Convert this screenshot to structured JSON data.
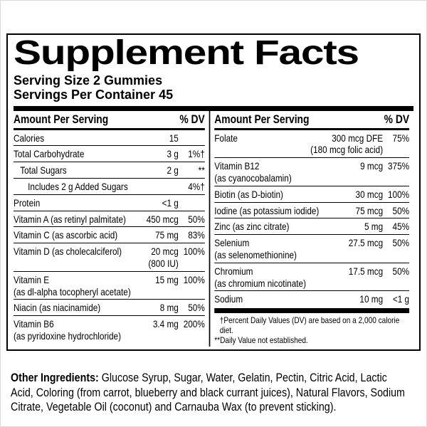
{
  "label": {
    "title": "Supplement Facts",
    "serving_size": "Serving Size 2 Gummies",
    "servings_per_container": "Servings Per Container 45",
    "left": {
      "header_amount": "Amount Per Serving",
      "header_dv": "% DV",
      "rows": [
        {
          "name": "Calories",
          "amount": "15",
          "dv": ""
        },
        {
          "name": "Total Carbohydrate",
          "amount": "3 g",
          "dv": "1%†"
        },
        {
          "name": "Total Sugars",
          "amount": "2 g",
          "dv": "**"
        },
        {
          "name": "Includes 2 g Added Sugars",
          "amount": "",
          "dv": "4%†"
        },
        {
          "name": "Protein",
          "amount": "<1 g",
          "dv": ""
        },
        {
          "name": "Vitamin A (as retinyl palmitate)",
          "amount": "450 mcg",
          "dv": "50%"
        },
        {
          "name": "Vitamin C (as ascorbic acid)",
          "amount": "75 mg",
          "dv": "83%"
        },
        {
          "name": "Vitamin D (as cholecalciferol)",
          "amount": "20 mcg",
          "amount_sub": "(800 IU)",
          "dv": "100%"
        },
        {
          "name": "Vitamin E",
          "name_sub": "(as dl-alpha tocopheryl acetate)",
          "amount": "15 mg",
          "dv": "100%"
        },
        {
          "name": "Niacin (as niacinamide)",
          "amount": "8 mg",
          "dv": "50%"
        },
        {
          "name": "Vitamin B6",
          "name_sub": "(as pyridoxine hydrochloride)",
          "amount": "3.4 mg",
          "dv": "200%"
        }
      ]
    },
    "right": {
      "header_amount": "Amount Per Serving",
      "header_dv": "% DV",
      "rows": [
        {
          "name": "Folate",
          "amount": "300 mcg DFE",
          "amount_sub": "(180 mcg folic acid)",
          "dv": "75%"
        },
        {
          "name": "Vitamin B12",
          "name_sub": "(as cyanocobalamin)",
          "amount": "9 mcg",
          "dv": "375%"
        },
        {
          "name": "Biotin (as D-biotin)",
          "amount": "30 mcg",
          "dv": "100%"
        },
        {
          "name": "Iodine (as potassium iodide)",
          "amount": "75 mcg",
          "dv": "50%"
        },
        {
          "name": "Zinc (as zinc citrate)",
          "amount": "5 mg",
          "dv": "45%"
        },
        {
          "name": "Selenium",
          "name_sub": "(as selenomethionine)",
          "amount": "27.5 mcg",
          "dv": "50%"
        },
        {
          "name": "Chromium",
          "name_sub": "(as chromium nicotinate)",
          "amount": "17.5 mcg",
          "dv": "50%"
        },
        {
          "name": "Sodium",
          "amount": "10 mg",
          "dv": "<1 g"
        }
      ],
      "footnotes": [
        "†Percent Daily Values (DV) are based on a 2,000 calorie diet.",
        "**Daily Value not established."
      ]
    }
  },
  "other_ingredients": {
    "label": "Other Ingredients:",
    "text": " Glucose Syrup, Sugar, Water, Gelatin, Pectin, Citric Acid, Lactic Acid, Coloring (from carrot, blueberry and black currant juices), Natural Flavors, Sodium Citrate, Vegetable Oil (coconut) and Carnauba Wax (to prevent sticking)."
  },
  "colors": {
    "text": "#000000",
    "background": "#ffffff",
    "rule": "#000000",
    "frame": "#d9d9d9"
  }
}
